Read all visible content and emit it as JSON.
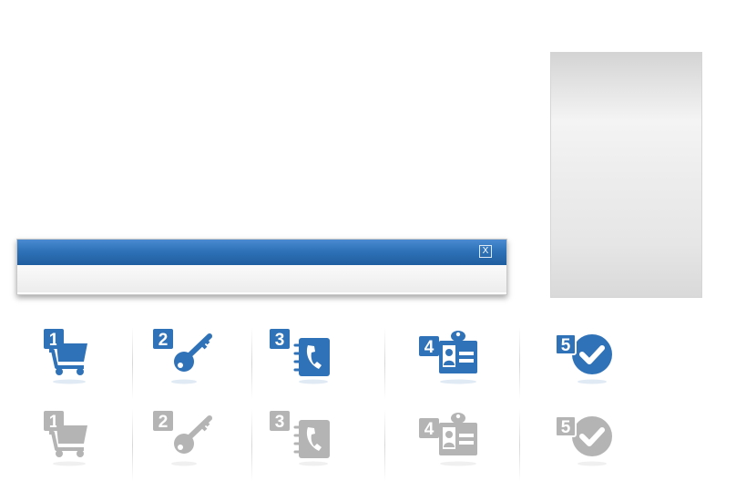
{
  "dialog": {
    "title": "",
    "close_label": "X"
  },
  "colors": {
    "active": "#2f72b8",
    "active_dark": "#1f5e9f",
    "inactive": "#b4b4b4",
    "header_top": "#4a8ad0",
    "header_bottom": "#1f5e9f"
  },
  "steps_active": [
    {
      "number": "1",
      "icon": "shopping-cart-icon"
    },
    {
      "number": "2",
      "icon": "key-icon"
    },
    {
      "number": "3",
      "icon": "address-book-icon"
    },
    {
      "number": "4",
      "icon": "id-badge-icon"
    },
    {
      "number": "5",
      "icon": "checkmark-circle-icon"
    }
  ],
  "steps_inactive": [
    {
      "number": "1",
      "icon": "shopping-cart-icon"
    },
    {
      "number": "2",
      "icon": "key-icon"
    },
    {
      "number": "3",
      "icon": "address-book-icon"
    },
    {
      "number": "4",
      "icon": "id-badge-icon"
    },
    {
      "number": "5",
      "icon": "checkmark-circle-icon"
    }
  ]
}
